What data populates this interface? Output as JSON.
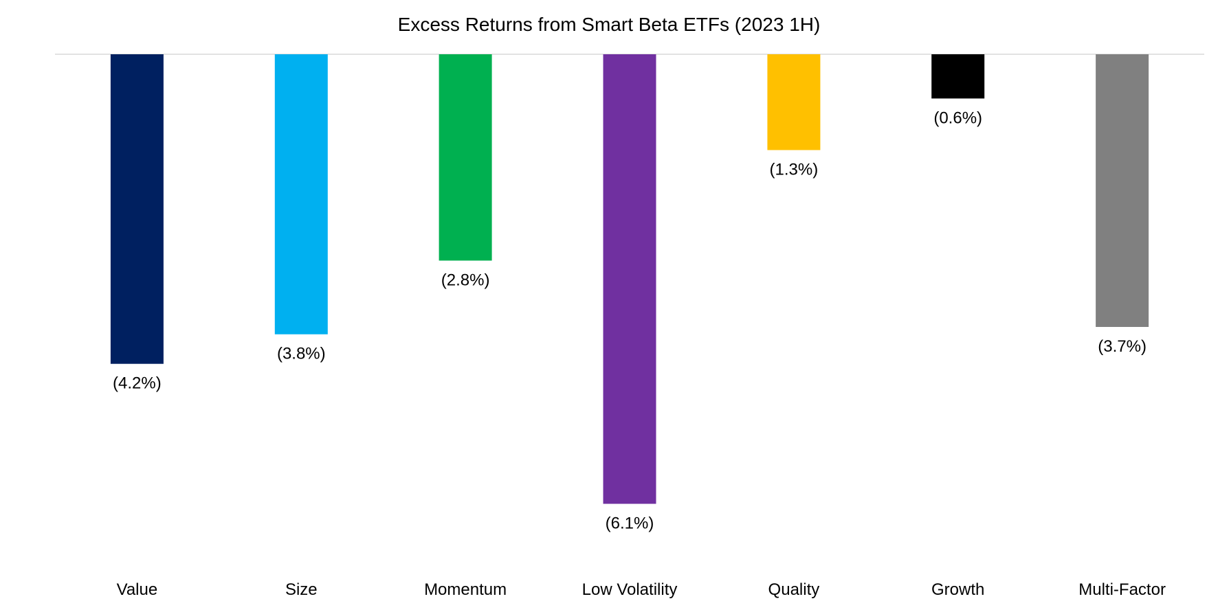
{
  "chart_data": {
    "type": "bar",
    "title": "Excess Returns from Smart Beta ETFs (2023 1H)",
    "xlabel": "",
    "ylabel": "",
    "categories": [
      "Value",
      "Size",
      "Momentum",
      "Low Volatility",
      "Quality",
      "Growth",
      "Multi-Factor"
    ],
    "values": [
      -4.2,
      -3.8,
      -2.8,
      -6.1,
      -1.3,
      -0.6,
      -3.7
    ],
    "data_labels": [
      "(4.2%)",
      "(3.8%)",
      "(2.8%)",
      "(6.1%)",
      "(1.3%)",
      "(0.6%)",
      "(3.7%)"
    ],
    "colors": [
      "#002060",
      "#00B0F0",
      "#00B050",
      "#7030A0",
      "#FFC000",
      "#000000",
      "#808080"
    ],
    "ylim": [
      -7,
      0
    ],
    "grid": false,
    "legend": "none",
    "zero_line_color": "#D9D9D9"
  }
}
